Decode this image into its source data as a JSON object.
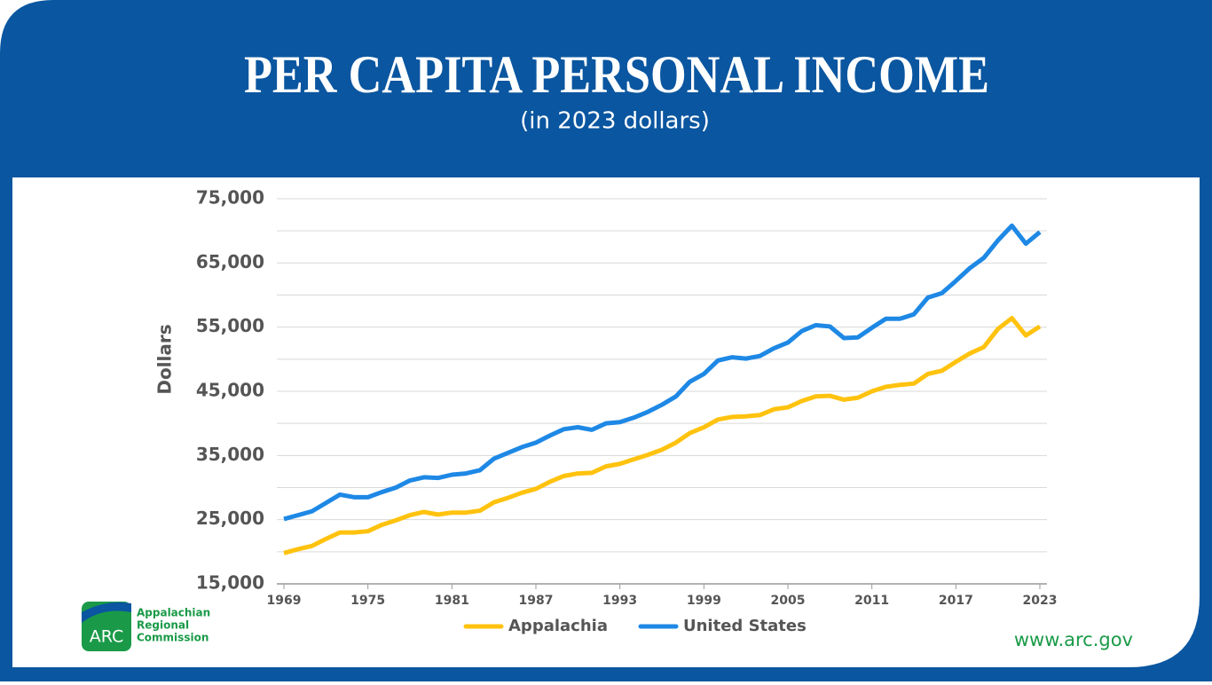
{
  "chart_data": {
    "type": "line",
    "title": "PER CAPITA PERSONAL INCOME",
    "subtitle": "(in 2023 dollars)",
    "y_label": "Dollars",
    "x": [
      1969,
      1970,
      1971,
      1972,
      1973,
      1974,
      1975,
      1976,
      1977,
      1978,
      1979,
      1980,
      1981,
      1982,
      1983,
      1984,
      1985,
      1986,
      1987,
      1988,
      1989,
      1990,
      1991,
      1992,
      1993,
      1994,
      1995,
      1996,
      1997,
      1998,
      1999,
      2000,
      2001,
      2002,
      2003,
      2004,
      2005,
      2006,
      2007,
      2008,
      2009,
      2010,
      2011,
      2012,
      2013,
      2014,
      2015,
      2016,
      2017,
      2018,
      2019,
      2020,
      2021,
      2022,
      2023
    ],
    "series": [
      {
        "name": "Appalachia",
        "color": "#ffc20e",
        "values": [
          19800,
          20400,
          20900,
          22000,
          23000,
          23000,
          23200,
          24200,
          24900,
          25700,
          26200,
          25800,
          26100,
          26100,
          26400,
          27700,
          28400,
          29200,
          29800,
          30900,
          31800,
          32200,
          32300,
          33300,
          33700,
          34400,
          35100,
          35900,
          37000,
          38500,
          39400,
          40600,
          41000,
          41100,
          41300,
          42200,
          42500,
          43500,
          44200,
          44300,
          43700,
          44000,
          45000,
          45700,
          46000,
          46200,
          47700,
          48200,
          49600,
          50900,
          51900,
          54700,
          56400,
          53700,
          55100
        ]
      },
      {
        "name": "United States",
        "color": "#1e88e5",
        "values": [
          25100,
          25700,
          26300,
          27600,
          28900,
          28500,
          28500,
          29300,
          30000,
          31100,
          31600,
          31500,
          32000,
          32200,
          32700,
          34500,
          35400,
          36300,
          37000,
          38100,
          39100,
          39400,
          39000,
          40000,
          40200,
          40900,
          41800,
          42900,
          44200,
          46500,
          47700,
          49800,
          50300,
          50100,
          50500,
          51700,
          52600,
          54400,
          55300,
          55100,
          53300,
          53400,
          54900,
          56300,
          56300,
          57000,
          59600,
          60300,
          62200,
          64200,
          65800,
          68500,
          70800,
          68000,
          69800
        ]
      }
    ],
    "xlim": [
      1969,
      2023
    ],
    "xticks": [
      1969,
      1975,
      1981,
      1987,
      1993,
      1999,
      2005,
      2011,
      2017,
      2023
    ],
    "ylim": [
      15000,
      75000
    ],
    "yticks": [
      {
        "value": 15000,
        "label": "15,000"
      },
      {
        "value": 25000,
        "label": "25,000"
      },
      {
        "value": 35000,
        "label": "35,000"
      },
      {
        "value": 45000,
        "label": "45,000"
      },
      {
        "value": 55000,
        "label": "55,000"
      },
      {
        "value": 65000,
        "label": "65,000"
      },
      {
        "value": 75000,
        "label": "75,000"
      }
    ],
    "ygrid": [
      15000,
      20000,
      25000,
      30000,
      35000,
      40000,
      45000,
      50000,
      55000,
      60000,
      65000,
      70000,
      75000
    ],
    "legend": "bottom"
  },
  "branding": {
    "logo_mark": "ARC",
    "logo_lines": [
      "Appalachian",
      "Regional",
      "Commission"
    ],
    "url": "www.arc.gov"
  }
}
